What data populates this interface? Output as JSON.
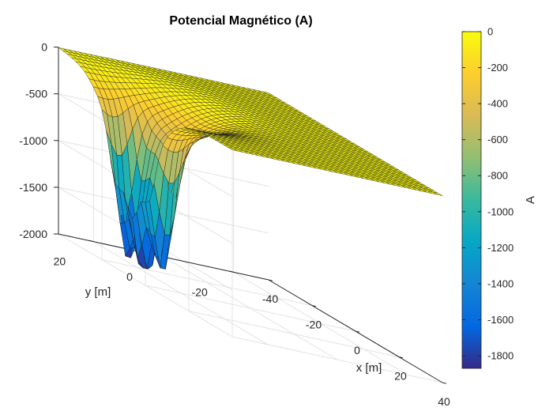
{
  "chart_data": {
    "type": "surface",
    "title": "Potencial Magnético (A)",
    "xlabel": "x [m]",
    "ylabel": "y [m]",
    "zlabel": "",
    "colorbar_label": "A",
    "colormap": "parula",
    "xlim": [
      -40,
      40
    ],
    "ylim": [
      -30,
      30
    ],
    "zlim": [
      -2000,
      0
    ],
    "x_ticks": [
      -40,
      -20,
      0,
      20,
      40
    ],
    "y_ticks": [
      -20,
      0,
      20
    ],
    "z_ticks": [
      -2000,
      -1500,
      -1000,
      -500,
      0
    ],
    "colorbar_range": [
      -1870,
      0
    ],
    "colorbar_ticks": [
      -1800,
      -1600,
      -1400,
      -1200,
      -1000,
      -800,
      -600,
      -400,
      -200,
      0
    ],
    "minimum_A": -1870,
    "grid": true,
    "wells": [
      {
        "x": -14,
        "y": 26,
        "depth": -1850
      },
      {
        "x": -6,
        "y": 26,
        "depth": -1800
      },
      {
        "x": 2,
        "y": 26,
        "depth": -1750
      }
    ]
  }
}
